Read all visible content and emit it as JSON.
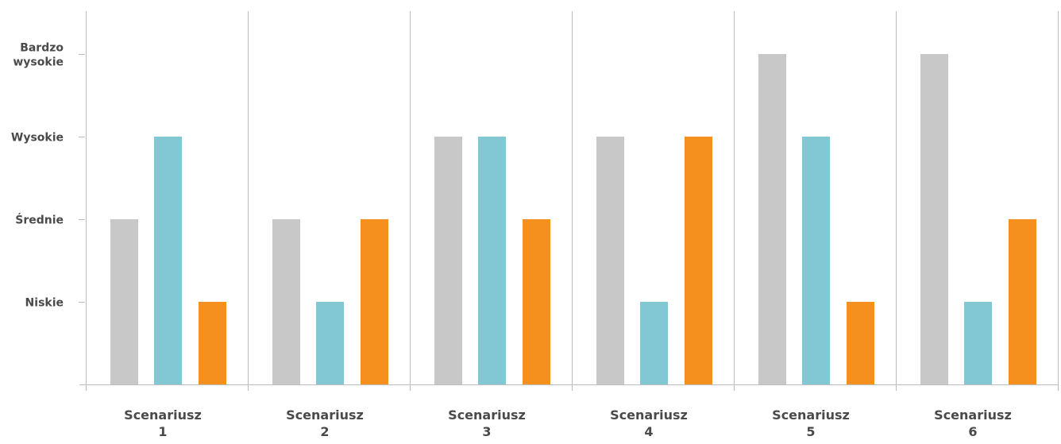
{
  "chart_data": {
    "type": "bar",
    "title": "",
    "xlabel": "",
    "ylabel": "",
    "ylim": [
      0,
      4
    ],
    "y_ticks": [
      {
        "value": 1,
        "label": [
          "Niskie"
        ]
      },
      {
        "value": 2,
        "label": [
          "Średnie"
        ]
      },
      {
        "value": 3,
        "label": [
          "Wysokie"
        ]
      },
      {
        "value": 4,
        "label": [
          "Bardzo",
          "wysokie"
        ]
      }
    ],
    "categories": [
      [
        "Scenariusz",
        "1"
      ],
      [
        "Scenariusz",
        "2"
      ],
      [
        "Scenariusz",
        "3"
      ],
      [
        "Scenariusz",
        "4"
      ],
      [
        "Scenariusz",
        "5"
      ],
      [
        "Scenariusz",
        "6"
      ]
    ],
    "series": [
      {
        "color": "#c8c8c8",
        "values": [
          2,
          2,
          3,
          3,
          4,
          4
        ]
      },
      {
        "color": "#82c8d4",
        "values": [
          3,
          1,
          3,
          1,
          3,
          1
        ]
      },
      {
        "color": "#f5901e",
        "values": [
          1,
          2,
          2,
          3,
          1,
          2
        ]
      }
    ],
    "grid": false,
    "category_separators": true,
    "axis_color": "#bdbdbd",
    "legend": "none"
  }
}
